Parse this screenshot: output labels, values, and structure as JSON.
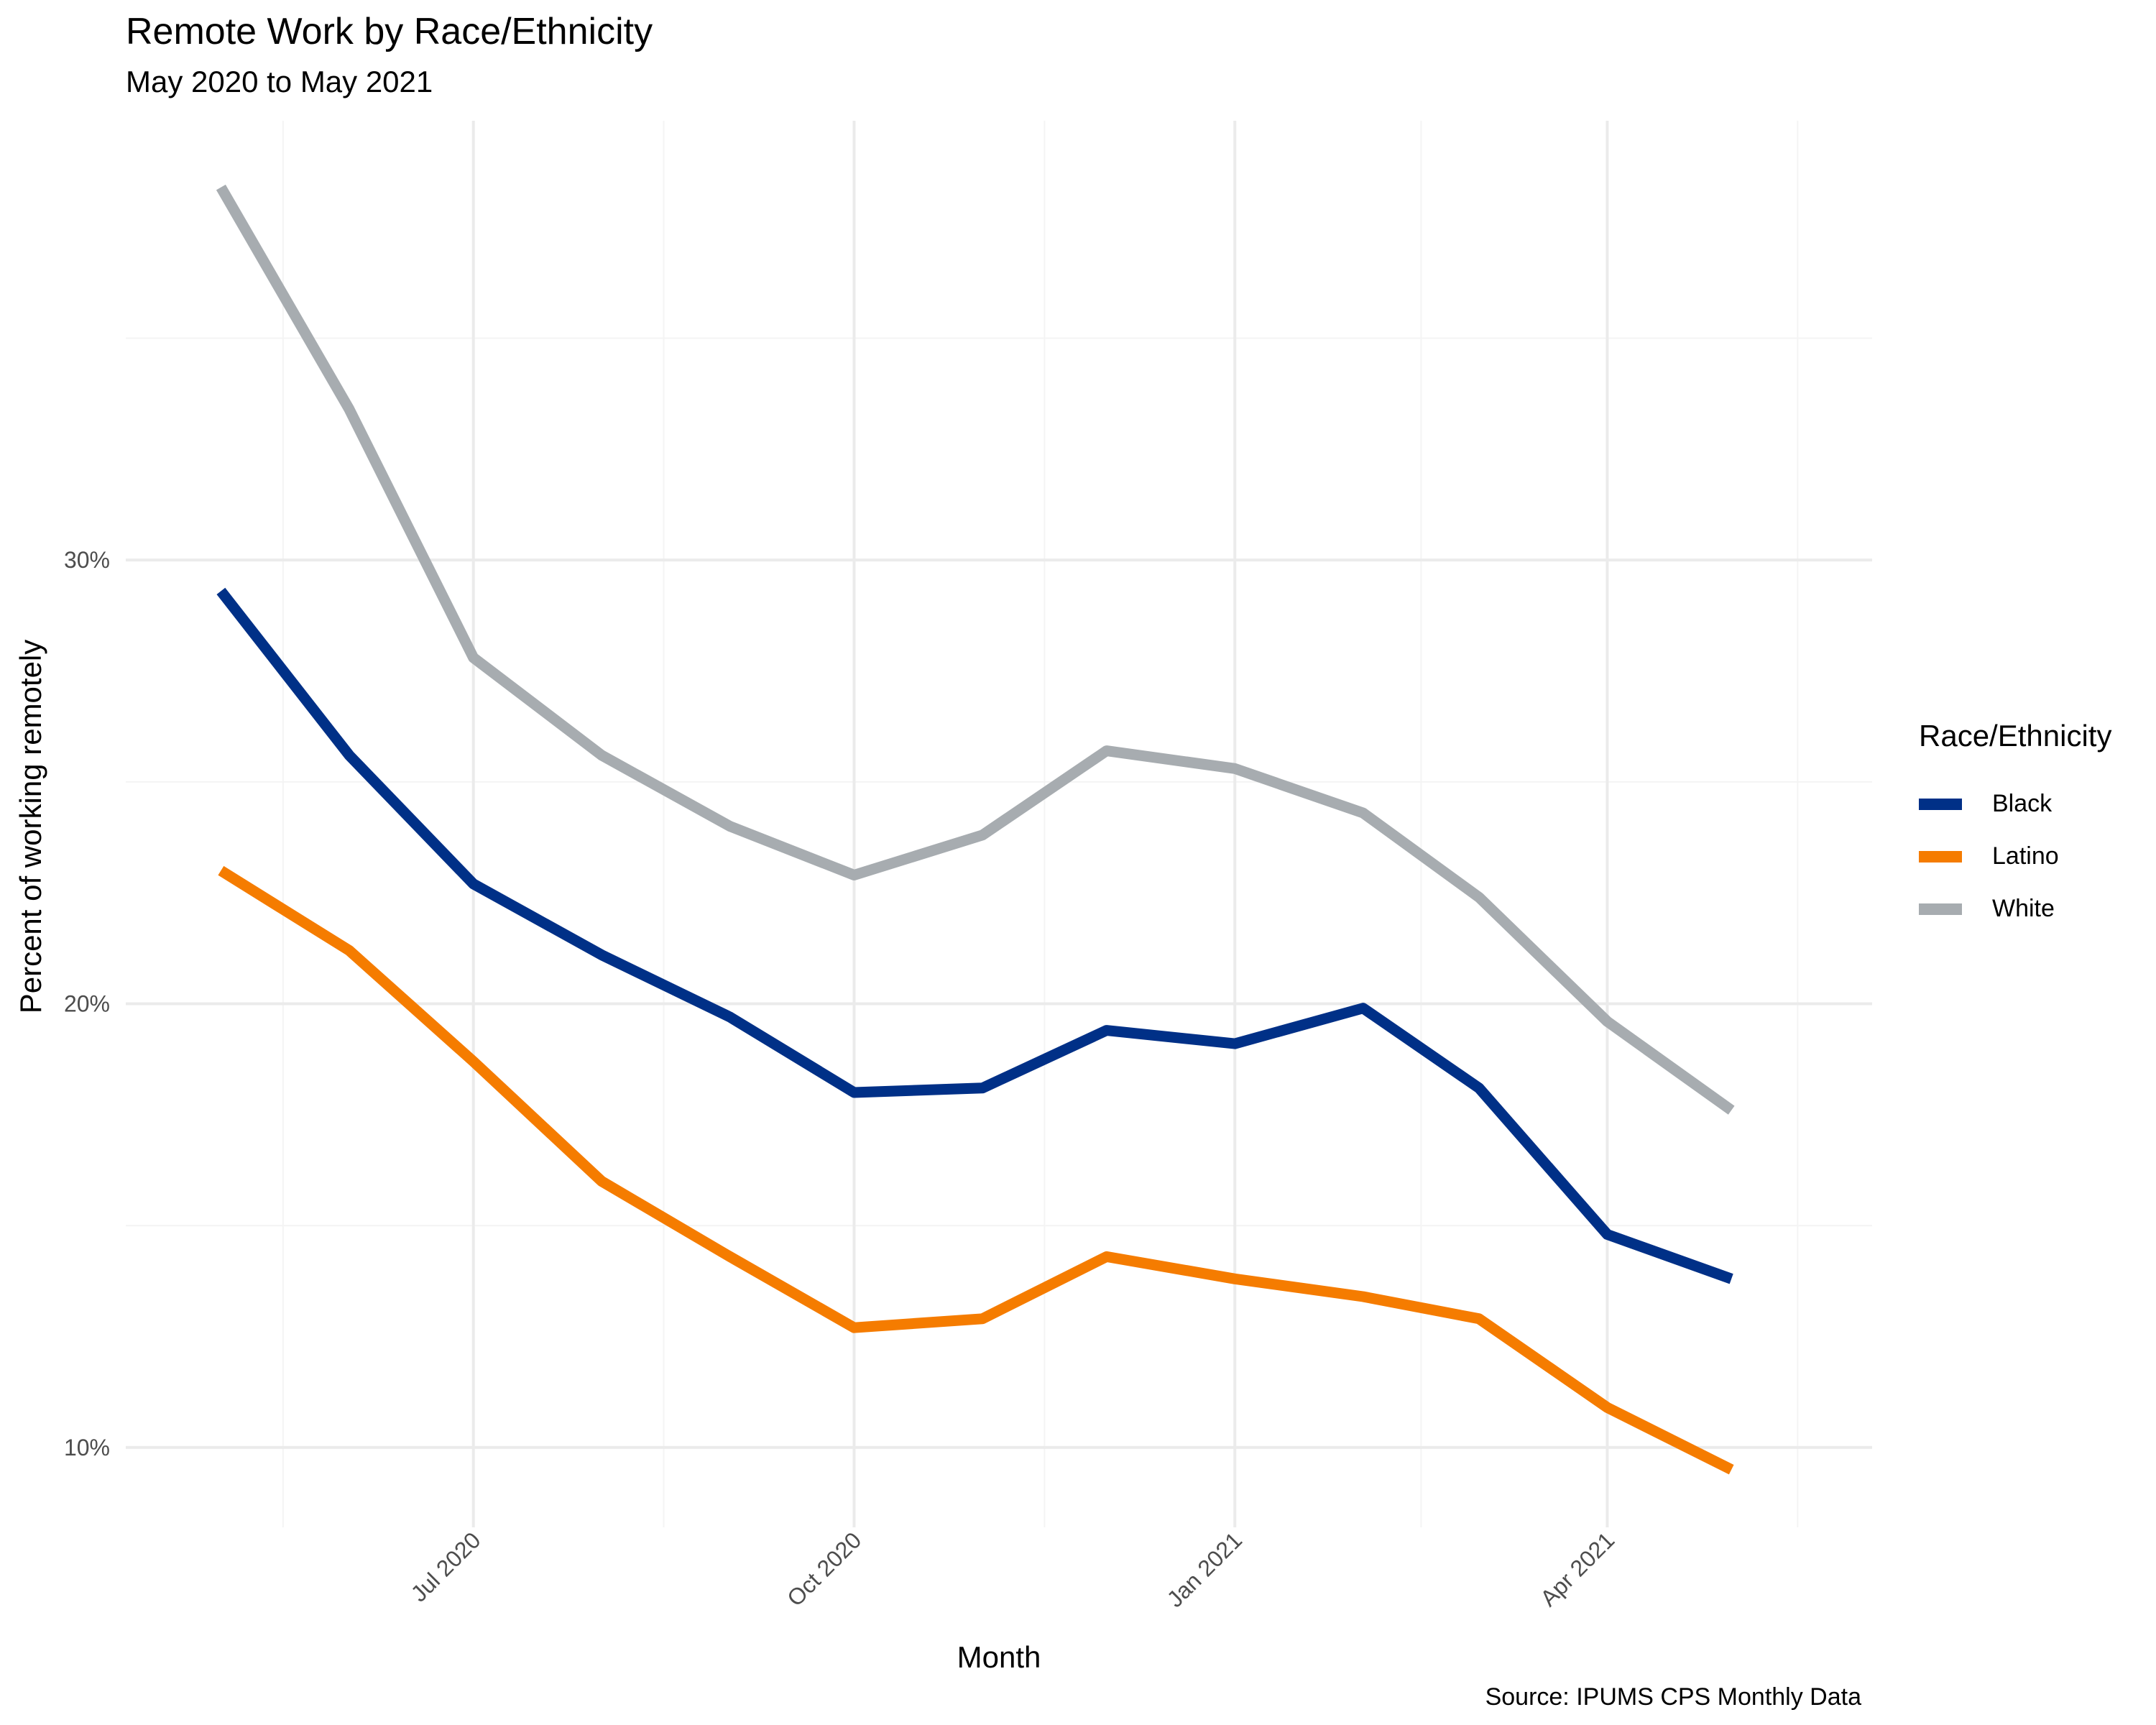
{
  "chart_data": {
    "type": "line",
    "title": "Remote Work by Race/Ethnicity",
    "subtitle": "May 2020 to May 2021",
    "caption": "Source: IPUMS CPS Monthly Data",
    "xlabel": "Month",
    "ylabel": "Percent of working remotely",
    "x": [
      "2020-05",
      "2020-06",
      "2020-07",
      "2020-08",
      "2020-09",
      "2020-10",
      "2020-11",
      "2020-12",
      "2021-01",
      "2021-02",
      "2021-03",
      "2021-04",
      "2021-05"
    ],
    "x_ticks": [
      {
        "month": "2020-07",
        "label": "Jul 2020"
      },
      {
        "month": "2020-10",
        "label": "Oct 2020"
      },
      {
        "month": "2021-01",
        "label": "Jan 2021"
      },
      {
        "month": "2021-04",
        "label": "Apr 2021"
      }
    ],
    "y_ticks": [
      {
        "value": 10,
        "label": "10%"
      },
      {
        "value": 20,
        "label": "20%"
      },
      {
        "value": 30,
        "label": "30%"
      }
    ],
    "ylim": [
      8.2,
      39.9
    ],
    "xlim": [
      "2020-04-08",
      "2021-06-04"
    ],
    "grid": true,
    "legend_title": "Race/Ethnicity",
    "legend_position": "right",
    "series": [
      {
        "name": "Black",
        "color": "#003087",
        "values": [
          29.3,
          25.6,
          22.7,
          21.1,
          19.7,
          18.0,
          18.1,
          19.4,
          19.1,
          19.9,
          18.1,
          14.8,
          13.8
        ]
      },
      {
        "name": "Latino",
        "color": "#F57C00",
        "values": [
          23.0,
          21.2,
          18.7,
          16.0,
          14.3,
          12.7,
          12.9,
          14.3,
          13.8,
          13.4,
          12.9,
          10.9,
          9.5
        ]
      },
      {
        "name": "White",
        "color": "#A7ACB0",
        "values": [
          38.4,
          33.4,
          27.8,
          25.6,
          24.0,
          22.9,
          23.8,
          25.7,
          25.3,
          24.3,
          22.4,
          19.6,
          17.6
        ]
      }
    ]
  }
}
